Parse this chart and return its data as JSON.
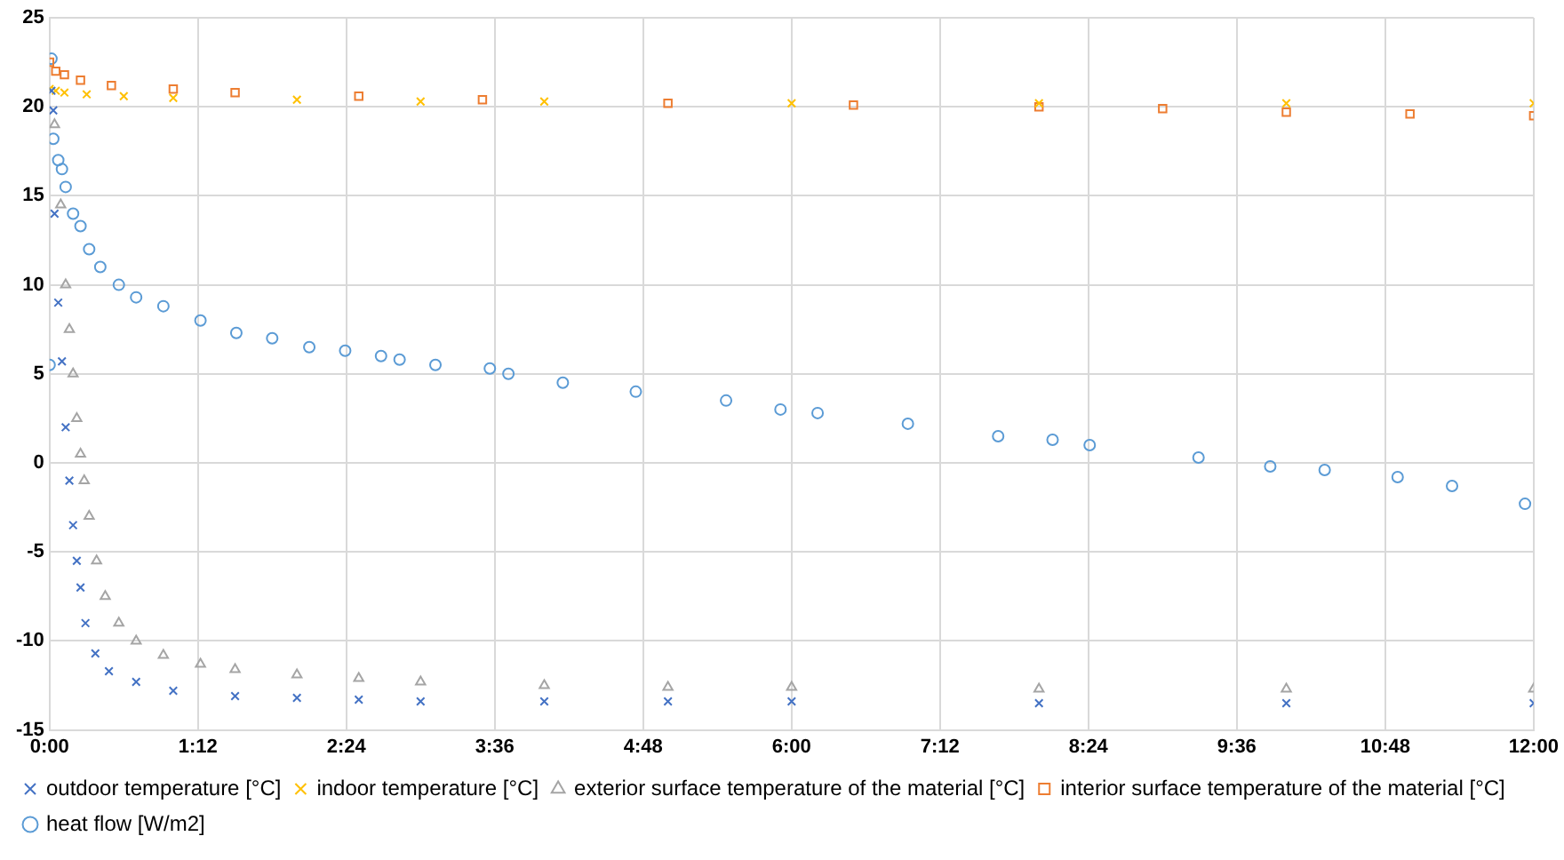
{
  "chart_data": {
    "type": "scatter",
    "xlim": [
      0,
      12
    ],
    "xticks": [
      {
        "value": 0,
        "label": "0:00"
      },
      {
        "value": 1.2,
        "label": "1:12"
      },
      {
        "value": 2.4,
        "label": "2:24"
      },
      {
        "value": 3.6,
        "label": "3:36"
      },
      {
        "value": 4.8,
        "label": "4:48"
      },
      {
        "value": 6,
        "label": "6:00"
      },
      {
        "value": 7.2,
        "label": "7:12"
      },
      {
        "value": 8.4,
        "label": "8:24"
      },
      {
        "value": 9.6,
        "label": "9:36"
      },
      {
        "value": 10.8,
        "label": "10:48"
      },
      {
        "value": 12,
        "label": "12:00"
      }
    ],
    "ylim": [
      -15,
      25
    ],
    "yticks": [
      -15,
      -10,
      -5,
      0,
      5,
      10,
      15,
      20,
      25
    ],
    "grid": true,
    "legend": "bottom",
    "series": [
      {
        "name": "heat flow [W/m2]",
        "color": "#5b9bd5",
        "marker": "circle",
        "x": [
          0,
          0.015,
          0.03,
          0.07,
          0.1,
          0.13,
          0.19,
          0.25,
          0.32,
          0.41,
          0.56,
          0.7,
          0.92,
          1.22,
          1.51,
          1.8,
          2.1,
          2.39,
          2.68,
          2.83,
          3.12,
          3.56,
          3.71,
          4.15,
          4.74,
          5.47,
          5.91,
          6.21,
          6.94,
          7.67,
          8.11,
          8.41,
          9.29,
          9.87,
          10.31,
          10.9,
          11.34,
          11.93
        ],
        "values": [
          5.5,
          22.7,
          18.2,
          17,
          16.5,
          15.5,
          14,
          13.3,
          12,
          11,
          10,
          9.3,
          8.8,
          8,
          7.3,
          7,
          6.5,
          6.3,
          6,
          5.8,
          5.5,
          5.3,
          5,
          4.5,
          4,
          3.5,
          3,
          2.8,
          2.2,
          1.5,
          1.3,
          1,
          0.3,
          -0.2,
          -0.4,
          -0.8,
          -1.3,
          -2.3
        ]
      },
      {
        "name": "interior surface temperature of the material [°C]",
        "color": "#ed7d31",
        "marker": "square",
        "x": [
          0,
          0.05,
          0.12,
          0.25,
          0.5,
          1,
          1.5,
          2.5,
          3.5,
          5,
          6.5,
          8,
          9,
          10,
          11,
          12
        ],
        "values": [
          22.5,
          22,
          21.8,
          21.5,
          21.2,
          21,
          20.8,
          20.6,
          20.4,
          20.2,
          20.1,
          20,
          19.9,
          19.7,
          19.6,
          19.5
        ]
      },
      {
        "name": "exterior surface temperature of the material [°C]",
        "color": "#a5a5a5",
        "marker": "triangle",
        "x": [
          0.04,
          0.09,
          0.13,
          0.16,
          0.19,
          0.22,
          0.25,
          0.28,
          0.32,
          0.38,
          0.45,
          0.56,
          0.7,
          0.92,
          1.22,
          1.5,
          2,
          2.5,
          3,
          4,
          5,
          6,
          8,
          10,
          12
        ],
        "values": [
          19,
          14.5,
          10,
          7.5,
          5,
          2.5,
          0.5,
          -1,
          -3,
          -5.5,
          -7.5,
          -9,
          -10,
          -10.8,
          -11.3,
          -11.6,
          -11.9,
          -12.1,
          -12.3,
          -12.5,
          -12.6,
          -12.6,
          -12.7,
          -12.7,
          -12.7
        ]
      },
      {
        "name": "indoor temperature [°C]",
        "color": "#ffc000",
        "marker": "cross",
        "x": [
          0,
          0.05,
          0.12,
          0.3,
          0.6,
          1,
          2,
          3,
          4,
          6,
          8,
          10,
          12
        ],
        "values": [
          21,
          20.9,
          20.8,
          20.7,
          20.6,
          20.5,
          20.4,
          20.3,
          20.3,
          20.2,
          20.2,
          20.2,
          20.2
        ]
      },
      {
        "name": "outdoor temperature [°C]",
        "color": "#4472c4",
        "marker": "cross",
        "x": [
          0.015,
          0.03,
          0.04,
          0.07,
          0.1,
          0.13,
          0.16,
          0.19,
          0.22,
          0.25,
          0.29,
          0.37,
          0.48,
          0.7,
          1,
          1.5,
          2,
          2.5,
          3,
          4,
          5,
          6,
          8,
          10,
          12
        ],
        "values": [
          20.9,
          19.8,
          14,
          9,
          5.7,
          2,
          -1,
          -3.5,
          -5.5,
          -7,
          -9,
          -10.7,
          -11.7,
          -12.3,
          -12.8,
          -13.1,
          -13.2,
          -13.3,
          -13.4,
          -13.4,
          -13.4,
          -13.4,
          -13.5,
          -13.5,
          -13.5
        ]
      }
    ]
  }
}
